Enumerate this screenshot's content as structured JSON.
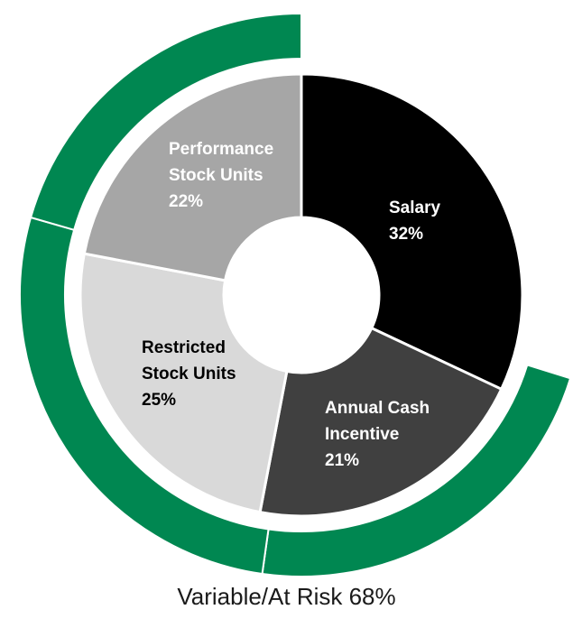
{
  "chart_data": {
    "type": "pie",
    "variant": "donut-with-outer-ring",
    "slices": [
      {
        "name": "Salary",
        "label_lines": [
          "Salary",
          "32%"
        ],
        "value": 32,
        "color": "#000000",
        "text_color": "#ffffff"
      },
      {
        "name": "Annual Cash Incentive",
        "label_lines": [
          "Annual Cash",
          "Incentive",
          "21%"
        ],
        "value": 21,
        "color": "#404040",
        "text_color": "#ffffff"
      },
      {
        "name": "Restricted Stock Units",
        "label_lines": [
          "Restricted",
          "Stock Units",
          "25%"
        ],
        "value": 25,
        "color": "#d9d9d9",
        "text_color": "#000000"
      },
      {
        "name": "Performance Stock Units",
        "label_lines": [
          "Performance",
          "Stock Units",
          "22%"
        ],
        "value": 22,
        "color": "#a6a6a6",
        "text_color": "#ffffff"
      }
    ],
    "outer_ring": {
      "value": 68,
      "color": "#008751",
      "covers": [
        "Annual Cash Incentive",
        "Restricted Stock Units",
        "Performance Stock Units"
      ]
    },
    "caption": "Variable/At Risk 68%",
    "legend": "none"
  }
}
